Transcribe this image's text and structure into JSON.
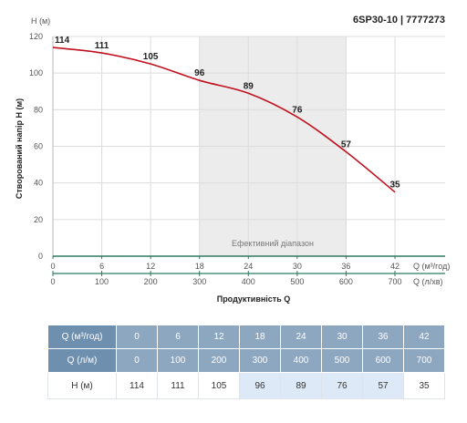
{
  "chart_data": {
    "type": "line",
    "title": "6SP30-10 | 7777273",
    "ylabel_unit": "H (м)",
    "ylabel": "Створований напір H (м)",
    "xlabel": "Продуктивність Q",
    "x_unit_top": "Q (м³/год)",
    "x_unit_bottom": "Q (л/хв)",
    "ylim": [
      0,
      120
    ],
    "yticks": [
      0,
      20,
      40,
      60,
      80,
      100,
      120
    ],
    "x_top_ticks": [
      0,
      6,
      12,
      18,
      24,
      30,
      36,
      42
    ],
    "x_bottom_ticks": [
      0,
      100,
      200,
      300,
      400,
      500,
      600,
      700
    ],
    "xlim": [
      0,
      45
    ],
    "grid": true,
    "efficient_range": {
      "from": 18,
      "to": 36,
      "label": "Ефективний діапазон"
    },
    "series": [
      {
        "color": "#c0111f",
        "x": [
          0,
          6,
          12,
          18,
          24,
          30,
          36,
          42
        ],
        "values": [
          114,
          111,
          105,
          96,
          89,
          76,
          57,
          35
        ]
      }
    ]
  },
  "table": {
    "headers": [
      "Q (м³/год)",
      "Q (л/м)",
      "H (м)"
    ],
    "rows": [
      [
        "0",
        "6",
        "12",
        "18",
        "24",
        "30",
        "36",
        "42"
      ],
      [
        "0",
        "100",
        "200",
        "300",
        "400",
        "500",
        "600",
        "700"
      ],
      [
        "114",
        "111",
        "105",
        "96",
        "89",
        "76",
        "57",
        "35"
      ]
    ]
  },
  "colors": {
    "curve": "#c0111f",
    "band": "#ececec",
    "axis": "#2f7a5f",
    "table_header": "#8ea7c1",
    "table_header_label": "#6f8fae",
    "table_highlight": "#dde9f6"
  }
}
